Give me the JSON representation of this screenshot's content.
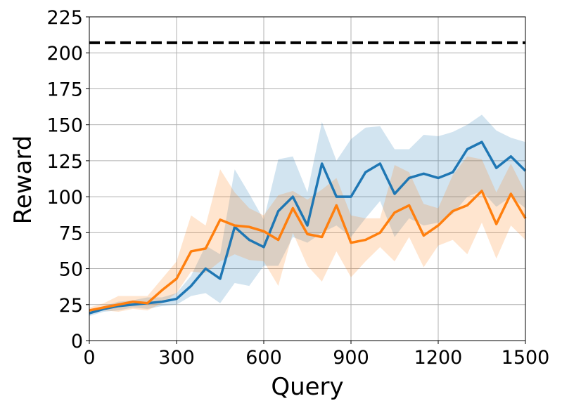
{
  "chart_data": {
    "type": "line",
    "xlabel": "Query",
    "ylabel": "Reward",
    "xlim": [
      0,
      1500
    ],
    "ylim": [
      0,
      225
    ],
    "xticks": [
      0,
      300,
      600,
      900,
      1200,
      1500
    ],
    "yticks": [
      0,
      25,
      50,
      75,
      100,
      125,
      150,
      175,
      200,
      225
    ],
    "grid": true,
    "x": [
      0,
      50,
      100,
      150,
      200,
      250,
      300,
      350,
      400,
      450,
      500,
      550,
      600,
      650,
      700,
      750,
      800,
      850,
      900,
      950,
      1000,
      1050,
      1100,
      1150,
      1200,
      1250,
      1300,
      1350,
      1400,
      1450,
      1500
    ],
    "reference_line": {
      "y": 207,
      "color": "#000000",
      "style": "dashed"
    },
    "series": [
      {
        "color": "#1f77b4",
        "values": [
          19,
          22,
          24,
          25,
          26,
          27,
          29,
          38,
          50,
          43,
          79,
          70,
          65,
          90,
          100,
          80,
          123,
          100,
          100,
          117,
          123,
          102,
          113,
          116,
          113,
          117,
          133,
          138,
          120,
          128,
          118
        ],
        "lower": [
          17,
          20,
          21,
          23,
          22,
          24,
          25,
          31,
          33,
          26,
          40,
          38,
          52,
          52,
          72,
          68,
          75,
          80,
          72,
          85,
          97,
          72,
          85,
          80,
          82,
          88,
          100,
          104,
          93,
          100,
          92
        ],
        "upper": [
          21,
          24,
          27,
          28,
          30,
          30,
          33,
          45,
          66,
          60,
          119,
          102,
          84,
          126,
          128,
          103,
          152,
          125,
          140,
          148,
          149,
          133,
          133,
          143,
          142,
          145,
          150,
          157,
          146,
          141,
          138
        ]
      },
      {
        "color": "#ff7f0e",
        "values": [
          21,
          23,
          25,
          27,
          26,
          35,
          43,
          62,
          64,
          84,
          80,
          79,
          76,
          70,
          92,
          74,
          72,
          94,
          68,
          70,
          75,
          89,
          94,
          73,
          80,
          90,
          94,
          104,
          81,
          102,
          85
        ],
        "lower": [
          19,
          21,
          20,
          22,
          21,
          26,
          33,
          48,
          47,
          55,
          60,
          56,
          55,
          38,
          75,
          52,
          41,
          62,
          44,
          55,
          65,
          55,
          72,
          51,
          66,
          70,
          60,
          82,
          57,
          80,
          70
        ],
        "upper": [
          23,
          26,
          31,
          31,
          31,
          43,
          55,
          87,
          80,
          119,
          103,
          92,
          87,
          101,
          104,
          98,
          105,
          113,
          87,
          85,
          85,
          122,
          117,
          95,
          92,
          115,
          128,
          126,
          103,
          123,
          103
        ]
      }
    ]
  }
}
